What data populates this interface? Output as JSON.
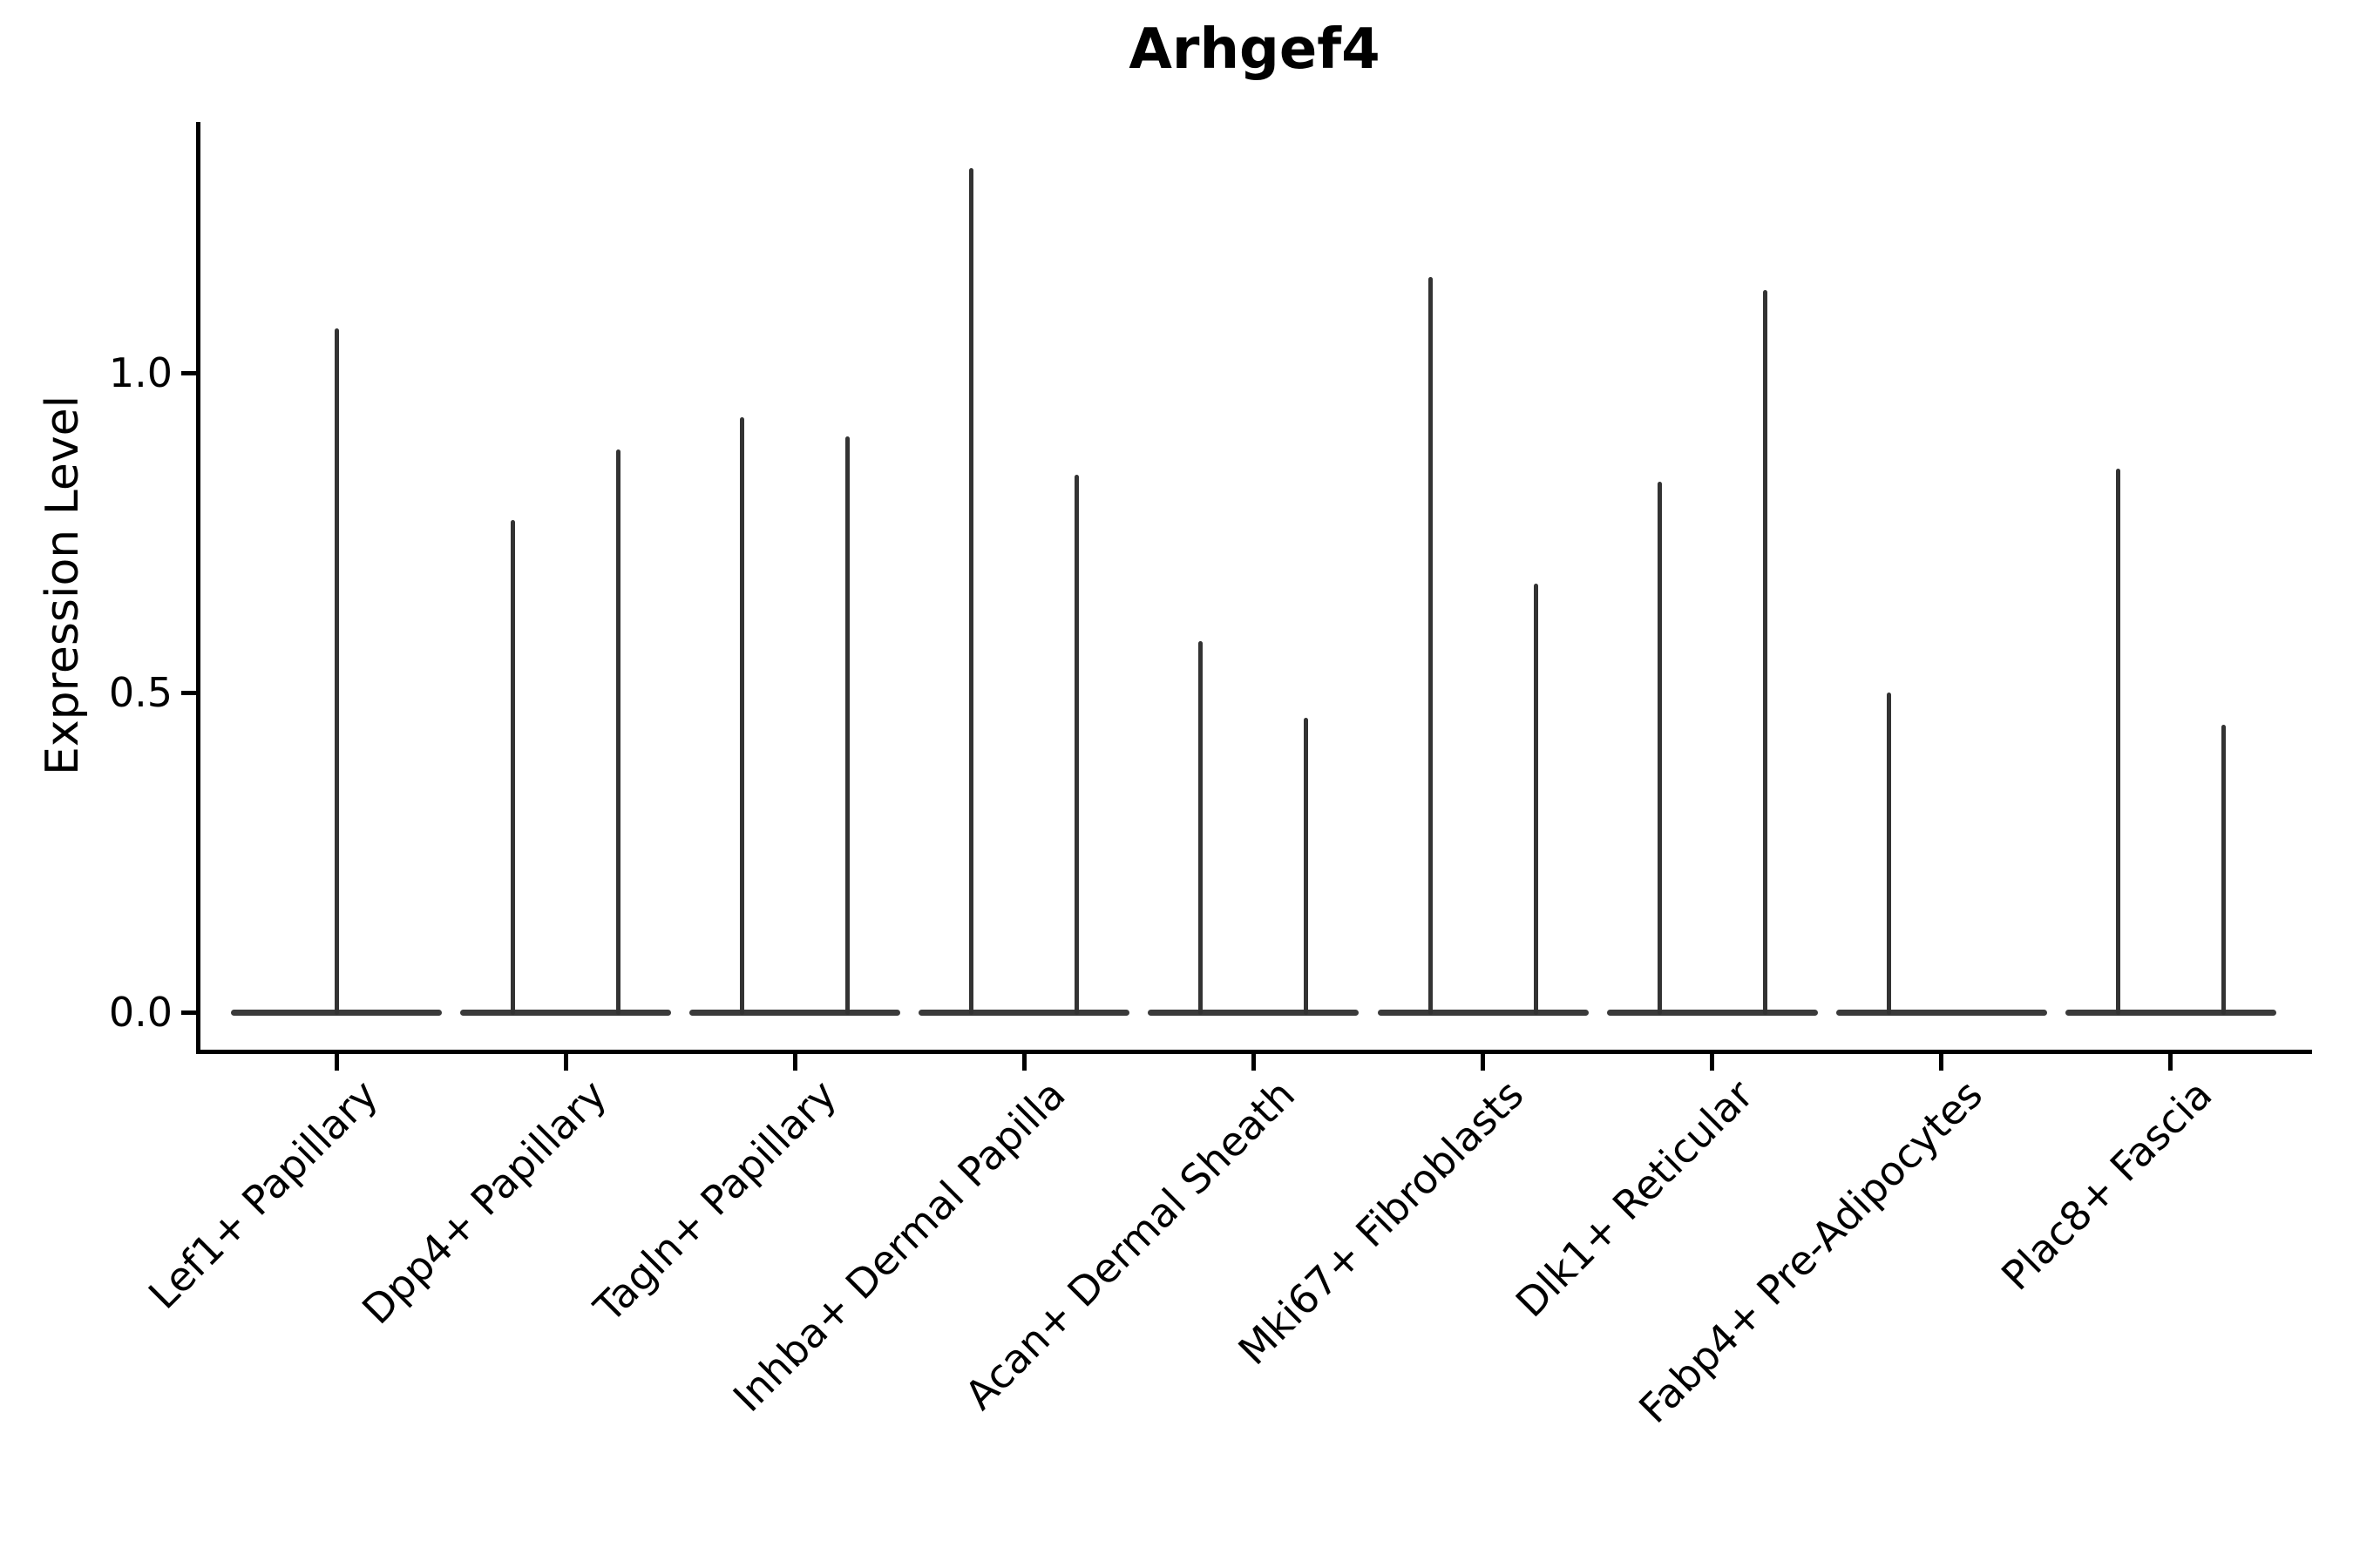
{
  "title": "Arhgef4",
  "chart_data": {
    "type": "violin",
    "title": "Arhgef4",
    "xlabel": "",
    "ylabel": "Expression Level",
    "ylim": [
      -0.06,
      1.39
    ],
    "yticks": [
      0.0,
      0.5,
      1.0
    ],
    "ytick_labels": [
      "0.0",
      "0.5",
      "1.0"
    ],
    "grid": false,
    "legend": "none",
    "xtick_label_rotation_deg": 45,
    "categories": [
      "Lef1+ Papillary",
      "Dpp4+ Papillary",
      "Tagln+ Papillary",
      "Inhba+ Dermal Papilla",
      "Acan+ Dermal Sheath",
      "Mki67+ Fibroblasts",
      "Dlk1+ Reticular",
      "Fabp4+ Pre-Adipocytes",
      "Plac8+ Fascia"
    ],
    "series": [
      {
        "category": "Lef1+ Papillary",
        "violin_maxima": [
          1.07
        ]
      },
      {
        "category": "Dpp4+ Papillary",
        "violin_maxima": [
          0.77,
          0.88
        ]
      },
      {
        "category": "Tagln+ Papillary",
        "violin_maxima": [
          0.93,
          0.9
        ]
      },
      {
        "category": "Inhba+ Dermal Papilla",
        "violin_maxima": [
          1.32,
          0.84
        ]
      },
      {
        "category": "Acan+ Dermal Sheath",
        "violin_maxima": [
          0.58,
          0.46
        ]
      },
      {
        "category": "Mki67+ Fibroblasts",
        "violin_maxima": [
          1.15,
          0.67
        ]
      },
      {
        "category": "Dlk1+ Reticular",
        "violin_maxima": [
          0.83,
          1.13
        ]
      },
      {
        "category": "Fabp4+ Pre-Adipocytes",
        "violin_maxima": [
          0.5,
          0.0
        ]
      },
      {
        "category": "Plac8+ Fascia",
        "violin_maxima": [
          0.85,
          0.45
        ]
      }
    ],
    "note_colors": {
      "violin_line": "#333333",
      "axis": "#000000",
      "text": "#000000"
    }
  }
}
